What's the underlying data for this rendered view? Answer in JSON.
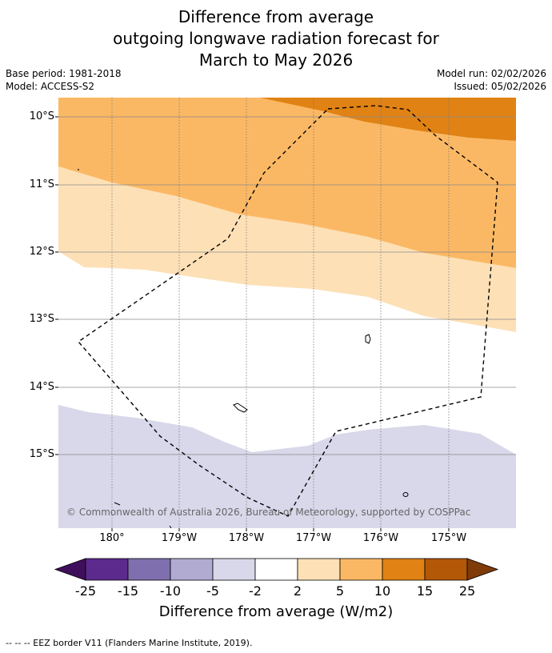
{
  "title": {
    "line1": "Difference from average",
    "line2": "outgoing longwave radiation forecast for",
    "line3": "March to May 2026"
  },
  "meta": {
    "base_period": "Base period: 1981-2018",
    "model": "Model: ACCESS-S2",
    "model_run": "Model run: 02/02/2026",
    "issued": "Issued: 05/02/2026"
  },
  "map": {
    "lat_labels": [
      "10°S",
      "11°S",
      "12°S",
      "13°S",
      "14°S",
      "15°S"
    ],
    "lon_labels": [
      "180°",
      "179°W",
      "178°W",
      "177°W",
      "176°W",
      "175°W"
    ],
    "copyright": "© Commonwealth of Australia 2026, Bureau of Meteorology, supported by COSPPac"
  },
  "colorbar": {
    "title": "Difference from average (W/m2)",
    "tick_labels": [
      "-25",
      "-15",
      "-10",
      "-5",
      "-2",
      "2",
      "5",
      "10",
      "15",
      "25"
    ],
    "colors": [
      "#3f0f5c",
      "#5b2a8c",
      "#7f6fae",
      "#b1abd2",
      "#d8d8ea",
      "#ffffff",
      "#fde0b6",
      "#fbb864",
      "#e08214",
      "#b35806",
      "#7f3b08"
    ]
  },
  "legend": {
    "eez": "--  --  -- EEZ border V11 (Flanders Marine Institute, 2019)."
  }
}
